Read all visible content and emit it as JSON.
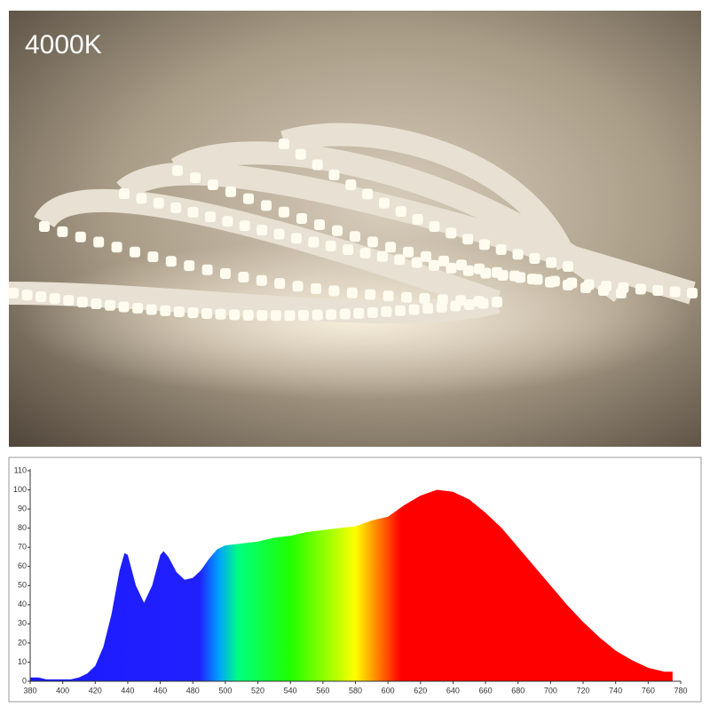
{
  "photo": {
    "label": "4000K"
  },
  "chart_data": {
    "type": "area",
    "x": [
      380,
      385,
      390,
      395,
      400,
      405,
      410,
      415,
      420,
      425,
      430,
      435,
      438,
      440,
      445,
      450,
      455,
      460,
      462,
      465,
      470,
      475,
      480,
      485,
      490,
      495,
      500,
      510,
      520,
      530,
      540,
      550,
      560,
      570,
      580,
      590,
      600,
      610,
      620,
      630,
      640,
      650,
      660,
      670,
      680,
      690,
      700,
      710,
      720,
      730,
      740,
      750,
      760,
      770,
      775
    ],
    "values": [
      2,
      2,
      1,
      1,
      1,
      1,
      2,
      4,
      8,
      18,
      35,
      58,
      67,
      66,
      50,
      41,
      50,
      66,
      68,
      65,
      57,
      53,
      54,
      58,
      64,
      69,
      71,
      72,
      73,
      75,
      76,
      78,
      79,
      80,
      81,
      84,
      86,
      92,
      97,
      100,
      99,
      95,
      88,
      80,
      70,
      60,
      50,
      40,
      31,
      23,
      16,
      11,
      7,
      5,
      5
    ],
    "xlim": [
      380,
      780
    ],
    "ylim": [
      0,
      110
    ],
    "xticks": [
      380,
      400,
      420,
      440,
      460,
      480,
      500,
      520,
      540,
      560,
      580,
      600,
      620,
      640,
      660,
      680,
      700,
      720,
      740,
      760,
      780
    ],
    "yticks": [
      0,
      10,
      20,
      30,
      40,
      50,
      60,
      70,
      80,
      90,
      100,
      110
    ],
    "grid": false
  }
}
